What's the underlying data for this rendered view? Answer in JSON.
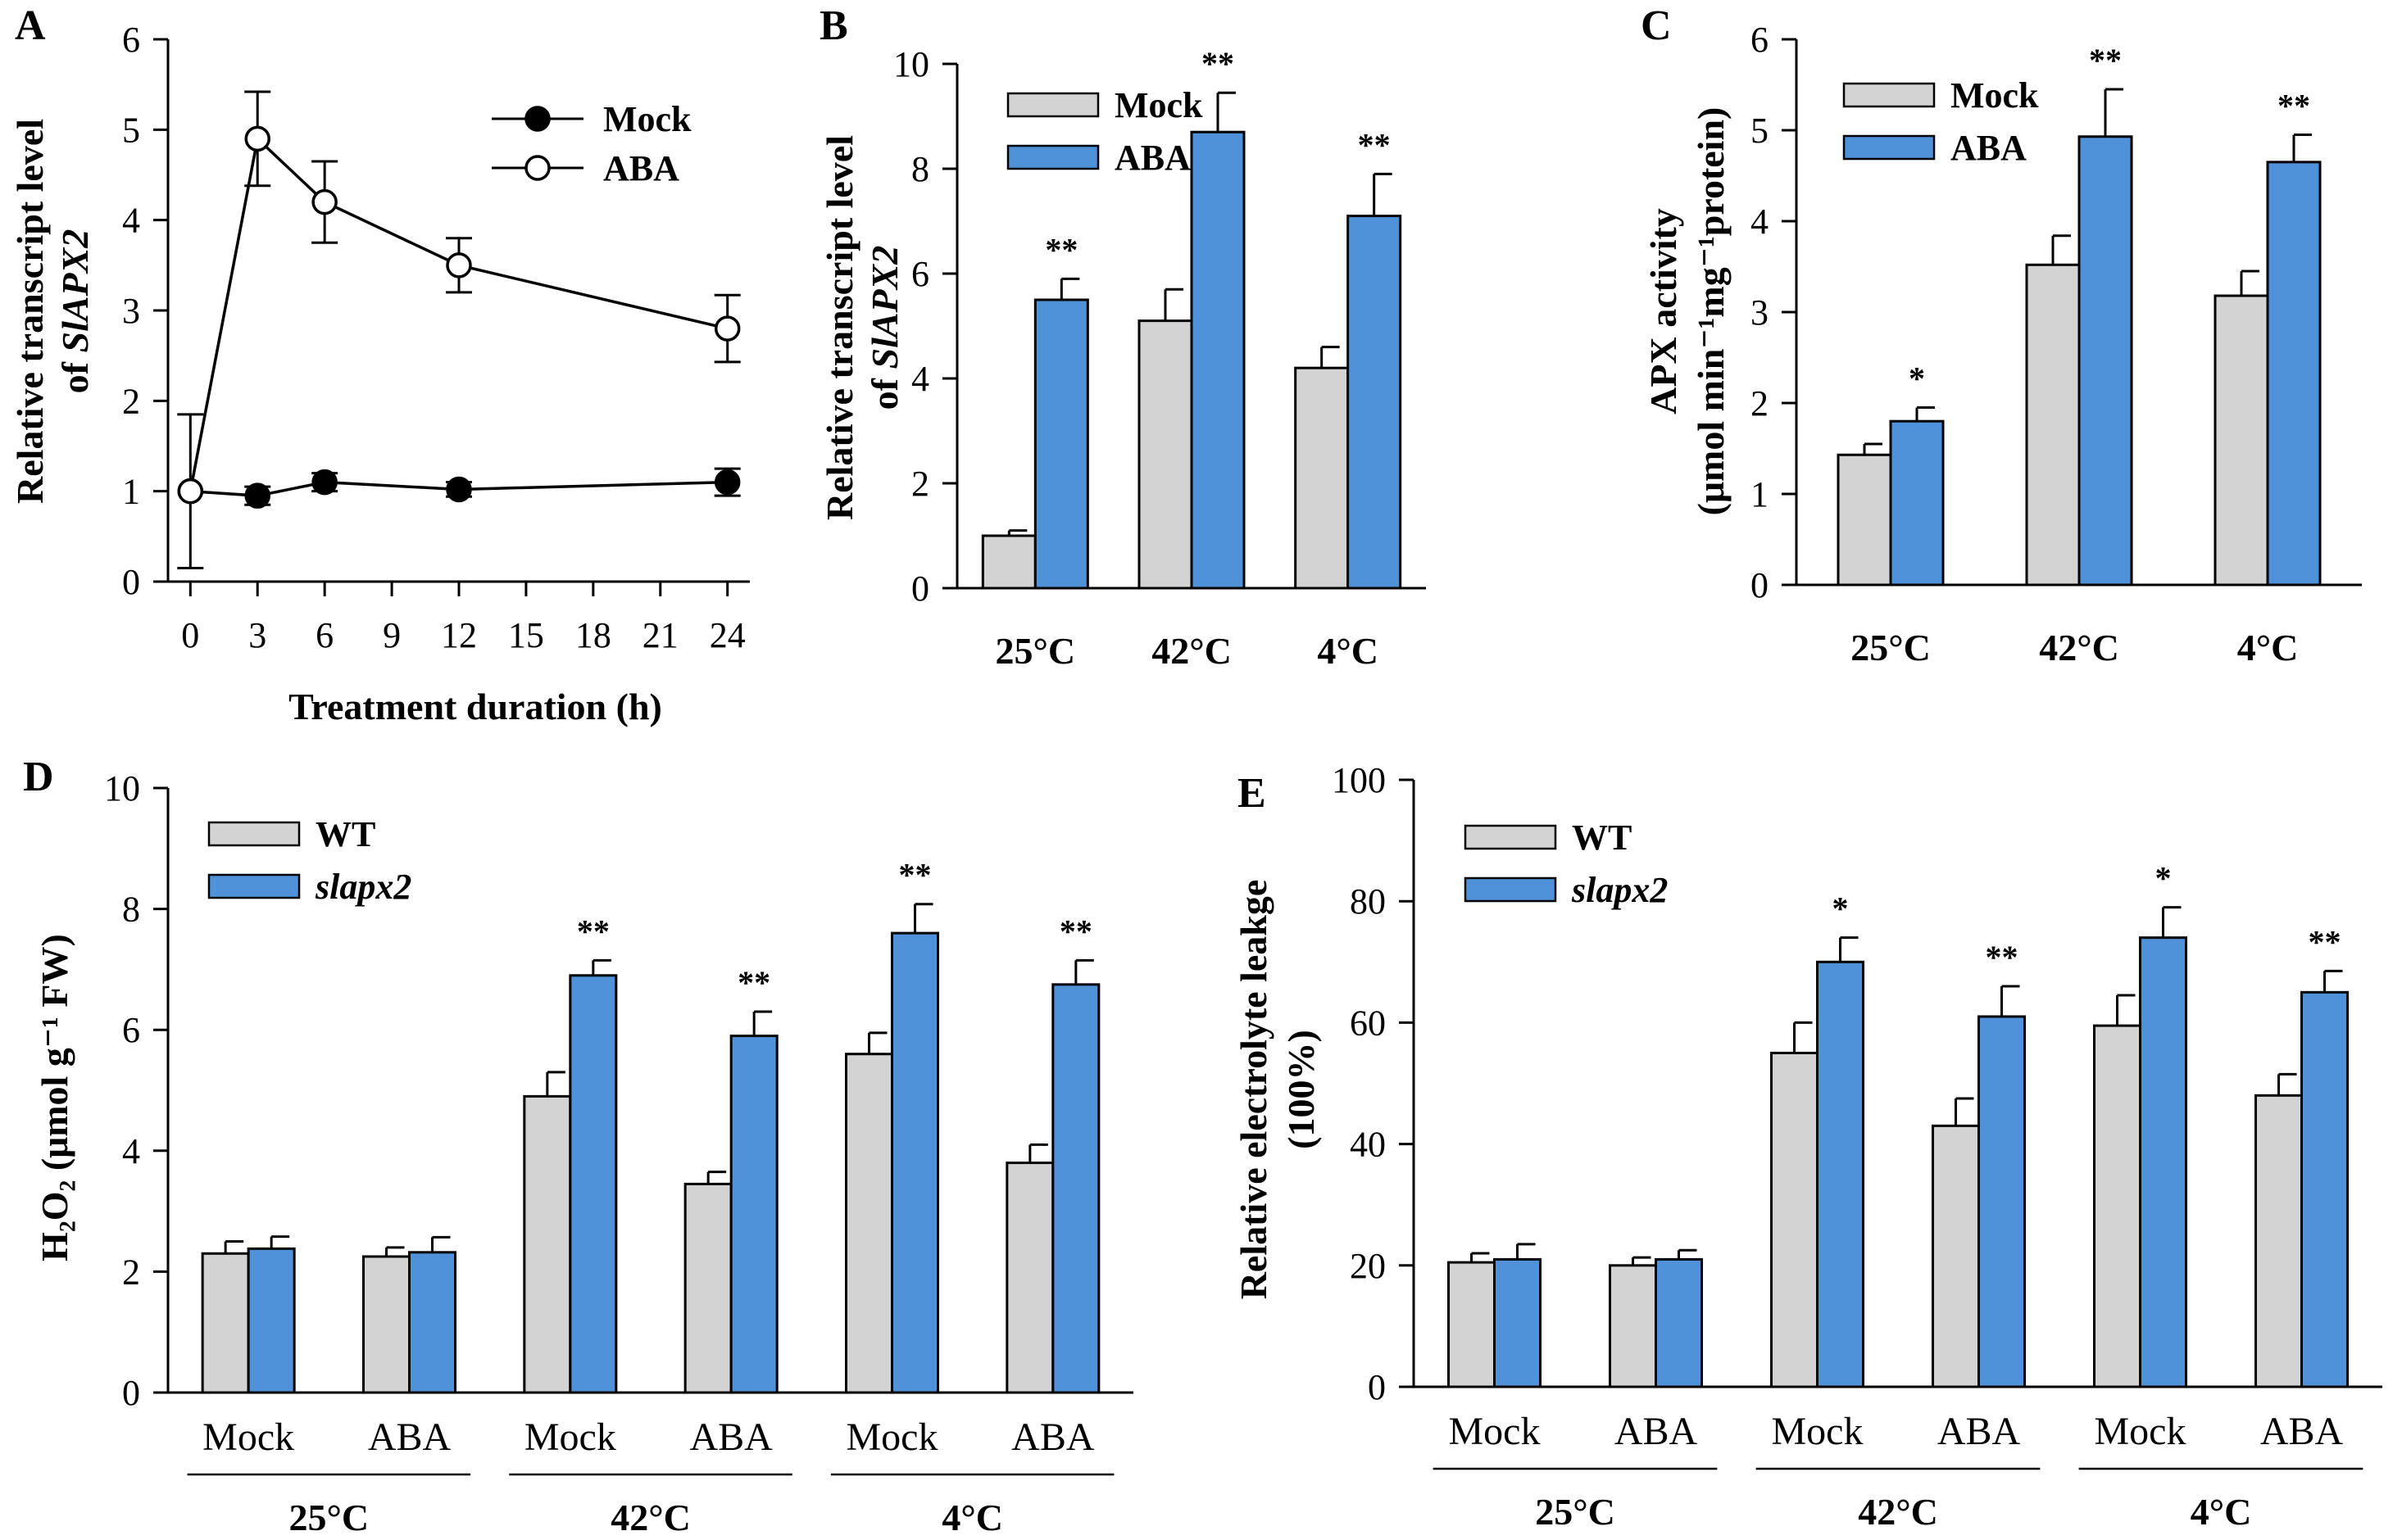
{
  "chart_data": [
    {
      "panel": "A",
      "type": "line",
      "ylabel_line1": "Relative transcript level",
      "ylabel_line2_prefix": "of ",
      "ylabel_line2_gene": "SlAPX2",
      "xlabel": "Treatment duration (h)",
      "x": [
        0,
        3,
        6,
        12,
        24
      ],
      "xticks": [
        "0",
        "3",
        "6",
        "9",
        "12",
        "15",
        "18",
        "21",
        "24"
      ],
      "xlim": [
        -1,
        25
      ],
      "ylim": [
        0,
        6
      ],
      "yticks": [
        "0",
        "1",
        "2",
        "3",
        "4",
        "5",
        "6"
      ],
      "series": [
        {
          "name": "Mock",
          "marker": "filled",
          "values": [
            1.0,
            0.95,
            1.1,
            1.02,
            1.1
          ],
          "errors": [
            0.0,
            0.1,
            0.1,
            0.08,
            0.15
          ]
        },
        {
          "name": "ABA",
          "marker": "open",
          "values": [
            1.0,
            4.9,
            4.2,
            3.5,
            2.8
          ],
          "errors": [
            0.85,
            0.52,
            0.45,
            0.3,
            0.37
          ]
        }
      ]
    },
    {
      "panel": "B",
      "type": "bar",
      "ylabel_line1": "Relative transcript level",
      "ylabel_line2_prefix": "of ",
      "ylabel_line2_gene": "SlAPX2",
      "categories": [
        "25°C",
        "42°C",
        "4°C"
      ],
      "ylim": [
        0,
        10
      ],
      "yticks": [
        "0",
        "2",
        "4",
        "6",
        "8",
        "10"
      ],
      "series": [
        {
          "name": "Mock",
          "color": "#d3d3d3",
          "values": [
            1.0,
            5.1,
            4.2
          ],
          "errors": [
            0.1,
            0.6,
            0.4
          ]
        },
        {
          "name": "ABA",
          "color": "#4f92d9",
          "values": [
            5.5,
            8.7,
            7.1
          ],
          "errors": [
            0.4,
            0.75,
            0.8
          ]
        }
      ],
      "annotations": [
        "**",
        "**",
        "**"
      ]
    },
    {
      "panel": "C",
      "type": "bar",
      "ylabel_line1": "APX activity",
      "ylabel_line2": "(μmol min⁻¹mg⁻¹protein)",
      "categories": [
        "25°C",
        "42°C",
        "4°C"
      ],
      "ylim": [
        0,
        6
      ],
      "yticks": [
        "0",
        "1",
        "2",
        "3",
        "4",
        "5",
        "6"
      ],
      "series": [
        {
          "name": "Mock",
          "color": "#d3d3d3",
          "values": [
            1.43,
            3.52,
            3.18
          ],
          "errors": [
            0.12,
            0.32,
            0.27
          ]
        },
        {
          "name": "ABA",
          "color": "#4f92d9",
          "values": [
            1.8,
            4.93,
            4.65
          ],
          "errors": [
            0.15,
            0.52,
            0.3
          ]
        }
      ],
      "annotations": [
        "*",
        "**",
        "**"
      ]
    },
    {
      "panel": "D",
      "type": "bar",
      "ylabel": "H₂O₂ (μmol g⁻¹ FW)",
      "categories": [
        "Mock",
        "ABA",
        "Mock",
        "ABA",
        "Mock",
        "ABA"
      ],
      "groups": [
        "25°C",
        "42°C",
        "4°C"
      ],
      "ylim": [
        0,
        10
      ],
      "yticks": [
        "0",
        "2",
        "4",
        "6",
        "8",
        "10"
      ],
      "series": [
        {
          "name": "WT",
          "color": "#d3d3d3",
          "values": [
            2.3,
            2.25,
            4.9,
            3.45,
            5.6,
            3.8
          ],
          "errors": [
            0.2,
            0.15,
            0.4,
            0.2,
            0.35,
            0.3
          ]
        },
        {
          "name": "slapx2",
          "color": "#4f92d9",
          "values": [
            2.38,
            2.32,
            6.9,
            5.9,
            7.6,
            6.75
          ],
          "errors": [
            0.2,
            0.25,
            0.25,
            0.4,
            0.48,
            0.4
          ]
        }
      ],
      "annotations": [
        "",
        "",
        "**",
        "**",
        "**",
        "**"
      ]
    },
    {
      "panel": "E",
      "type": "bar",
      "ylabel_line1": "Relative electrolyte leakge",
      "ylabel_line2": "(100%)",
      "categories": [
        "Mock",
        "ABA",
        "Mock",
        "ABA",
        "Mock",
        "ABA"
      ],
      "groups": [
        "25°C",
        "42°C",
        "4°C"
      ],
      "ylim": [
        0,
        100
      ],
      "yticks": [
        "0",
        "20",
        "40",
        "60",
        "80",
        "100"
      ],
      "series": [
        {
          "name": "WT",
          "color": "#d3d3d3",
          "values": [
            20.5,
            20,
            55,
            43,
            59.5,
            48
          ],
          "errors": [
            1.5,
            1.3,
            5,
            4.5,
            5,
            3.5
          ]
        },
        {
          "name": "slapx2",
          "color": "#4f92d9",
          "values": [
            21,
            21,
            70,
            61,
            74,
            65
          ],
          "errors": [
            2.5,
            1.5,
            4,
            5,
            5,
            3.5
          ]
        }
      ],
      "annotations": [
        "",
        "",
        "*",
        "**",
        "*",
        "**"
      ]
    }
  ]
}
